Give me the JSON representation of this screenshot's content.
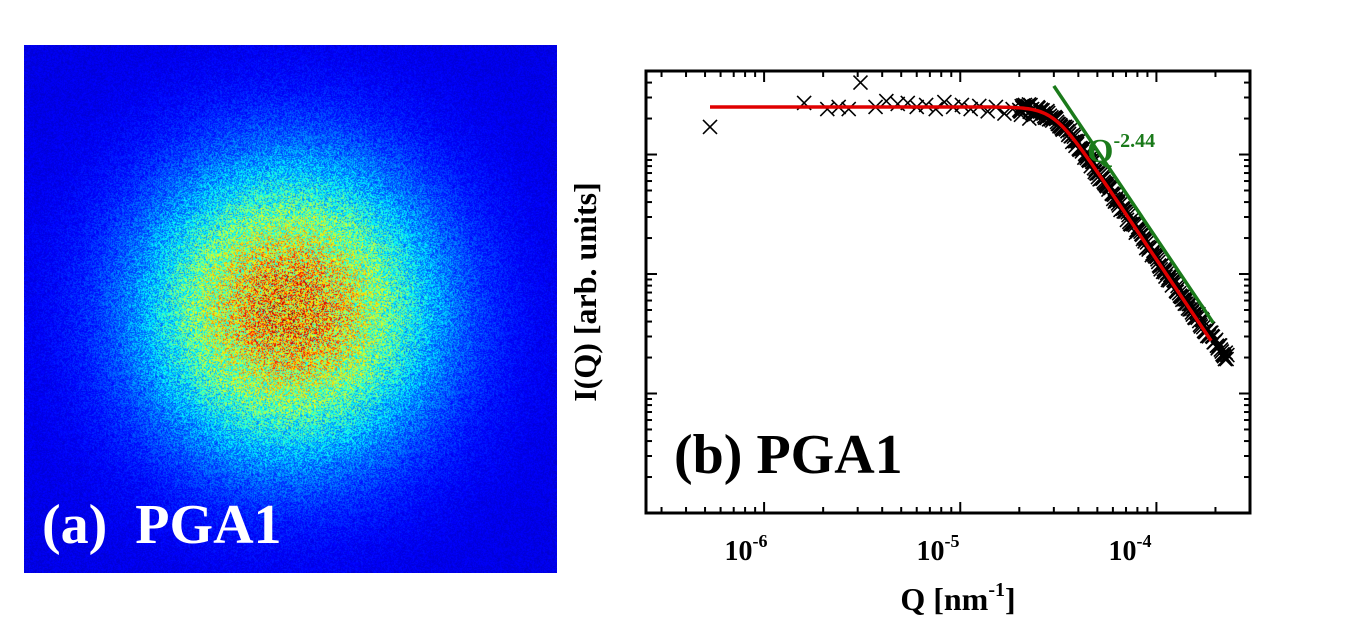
{
  "panel_a": {
    "label": "(a)  PGA1",
    "colormap": "jet",
    "background_color": "#00008b"
  },
  "chart_data": {
    "type": "scatter",
    "panel_label": "(b)  PGA1",
    "xlabel_main": "Q [nm",
    "xlabel_sup": "-1",
    "xlabel_end": "]",
    "ylabel": "I(Q) [arb. units]",
    "xscale": "log",
    "yscale": "log",
    "xlim": [
      2.5e-07,
      0.0003
    ],
    "ylim": [
      0.01,
      50
    ],
    "x_tick_labels": [
      {
        "value": 1e-06,
        "base": "10",
        "exp": "-6"
      },
      {
        "value": 1e-05,
        "base": "10",
        "exp": "-5"
      },
      {
        "value": 0.0001,
        "base": "10",
        "exp": "-4"
      }
    ],
    "y_major_ticks": [
      0.1,
      1,
      10
    ],
    "series": [
      {
        "name": "data",
        "marker": "x",
        "color": "#000000",
        "points": [
          {
            "x": 5.3e-07,
            "y": 17.0
          },
          {
            "x": 1.6e-06,
            "y": 27.0
          },
          {
            "x": 2.1e-06,
            "y": 24.0
          },
          {
            "x": 2.4e-06,
            "y": 25.0
          },
          {
            "x": 2.7e-06,
            "y": 24.0
          },
          {
            "x": 3.1e-06,
            "y": 40.0
          },
          {
            "x": 3.7e-06,
            "y": 25.0
          },
          {
            "x": 4.2e-06,
            "y": 28.0
          },
          {
            "x": 4.8e-06,
            "y": 26.5
          },
          {
            "x": 5.4e-06,
            "y": 27.0
          },
          {
            "x": 6e-06,
            "y": 25.0
          },
          {
            "x": 6.7e-06,
            "y": 26.0
          },
          {
            "x": 7.5e-06,
            "y": 24.0
          },
          {
            "x": 8.3e-06,
            "y": 27.5
          },
          {
            "x": 9.2e-06,
            "y": 25.0
          },
          {
            "x": 1.02e-05,
            "y": 26.0
          },
          {
            "x": 1.13e-05,
            "y": 24.0
          },
          {
            "x": 1.25e-05,
            "y": 25.5
          },
          {
            "x": 1.38e-05,
            "y": 23.0
          },
          {
            "x": 1.52e-05,
            "y": 25.0
          },
          {
            "x": 1.68e-05,
            "y": 22.0
          },
          {
            "x": 1.85e-05,
            "y": 24.0
          },
          {
            "x": 2.04e-05,
            "y": 21.5
          },
          {
            "x": 2.25e-05,
            "y": 20.0
          }
        ]
      },
      {
        "name": "fit",
        "type": "line",
        "color": "#e00000",
        "plateau_y": 25.0,
        "knee_x": 3e-05,
        "power_law_slope": -2.44,
        "x_range": [
          5.3e-07,
          0.00019
        ]
      },
      {
        "name": "power-law",
        "type": "line",
        "color": "#1a7a1a",
        "label_base": "Q",
        "label_exp": "-2.44",
        "slope": -2.44,
        "x_range": [
          3e-05,
          0.000195
        ]
      }
    ],
    "scatter_band": {
      "x_range": [
        2e-05,
        0.00023
      ],
      "noise_floor_y": 0.022
    }
  }
}
